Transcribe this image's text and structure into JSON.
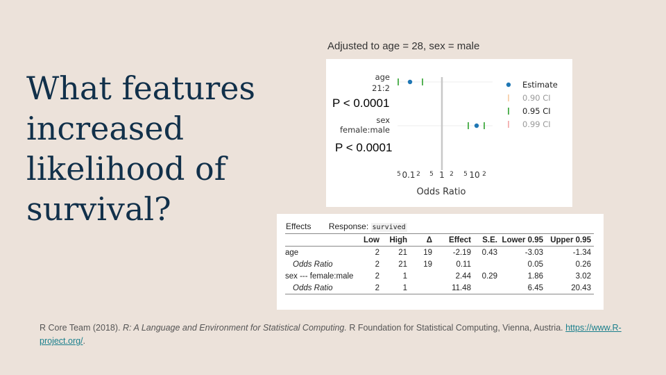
{
  "slide": {
    "title": "What features increased likelihood of survival?"
  },
  "chart": {
    "caption": "Adjusted to age = 28, sex = male",
    "tick_labels": [
      "5",
      "0.1",
      "2",
      "5",
      "1",
      "2",
      "5",
      "10",
      "2"
    ],
    "xlabel": "Odds Ratio",
    "p_age": "P < 0.0001",
    "p_sex": "P < 0.0001",
    "legend": [
      "Estimate",
      "0.90 CI",
      "0.95 CI",
      "0.99 CI"
    ],
    "rows": [
      {
        "label1": "age",
        "label2": "21:2"
      },
      {
        "label1": "sex",
        "label2": "female:male"
      }
    ],
    "colors": {
      "estimate": "#1f77b4",
      "ci90": "#f5c9a0",
      "ci95": "#2ca02c",
      "ci99": "#f1a3a3",
      "ref_line": "#c8c8c8"
    }
  },
  "chart_data": {
    "type": "scatter",
    "xlabel": "Odds Ratio",
    "scale": "log",
    "series": [
      {
        "name": "Estimate",
        "categories": [
          "age 21:2",
          "sex female:male"
        ],
        "values": [
          0.11,
          11.48
        ]
      },
      {
        "name": "0.95 CI",
        "categories": [
          "age 21:2",
          "sex female:male"
        ],
        "lower": [
          0.05,
          6.45
        ],
        "upper": [
          0.26,
          20.43
        ]
      }
    ]
  },
  "table": {
    "effects_label": "Effects",
    "response_label": "Response:",
    "response_var": "survived",
    "headers": [
      "",
      "Low",
      "High",
      "Δ",
      "Effect",
      "S.E.",
      "Lower 0.95",
      "Upper 0.95"
    ],
    "rows": [
      [
        "age",
        "2",
        "21",
        "19",
        "-2.19",
        "0.43",
        "-3.03",
        "-1.34"
      ],
      [
        "Odds Ratio",
        "2",
        "21",
        "19",
        "0.11",
        "",
        "0.05",
        "0.26"
      ],
      [
        "sex --- female:male",
        "2",
        "1",
        "",
        "2.44",
        "0.29",
        "1.86",
        "3.02"
      ],
      [
        "Odds Ratio",
        "2",
        "1",
        "",
        "11.48",
        "",
        "6.45",
        "20.43"
      ]
    ]
  },
  "citation": {
    "authors": "R Core Team (2018).",
    "title": "R: A Language and Environment for Statistical Computing.",
    "publisher": "R Foundation for Statistical Computing, Vienna, Austria.",
    "link": "https://www.R-project.org/",
    "tail": "."
  }
}
